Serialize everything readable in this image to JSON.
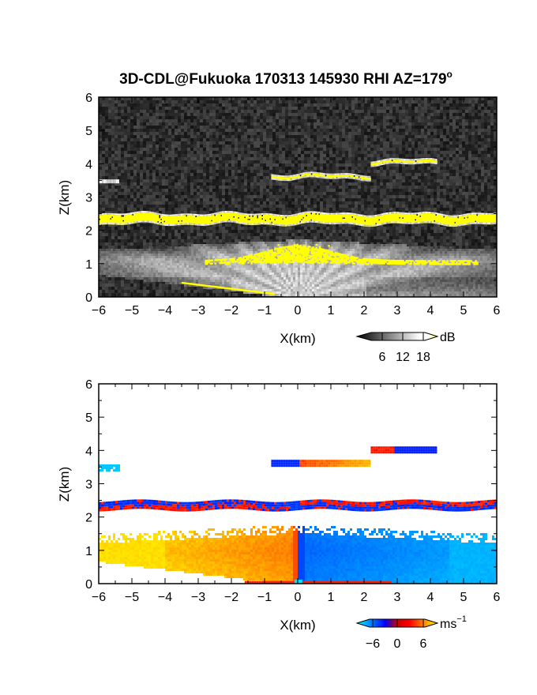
{
  "chart_data": [
    {
      "type": "heatmap",
      "title": "3D-CDL@Fukuoka 170313 145930 RHI AZ=179°",
      "title_main": "3D-CDL@Fukuoka 170313 145930 RHI AZ=179",
      "title_sup": "o",
      "quantity": "backscatter intensity",
      "xlabel": "X(km)",
      "ylabel": "Z(km)",
      "xlim": [
        -6,
        6
      ],
      "ylim": [
        0,
        6
      ],
      "xticks": [
        "−6",
        "−5",
        "−4",
        "−3",
        "−2",
        "−1",
        "0",
        "1",
        "2",
        "3",
        "4",
        "5",
        "6"
      ],
      "yticks": [
        "0",
        "1",
        "2",
        "3",
        "4",
        "5",
        "6"
      ],
      "colorbar": {
        "label": "dB",
        "ticks": [
          "6",
          "12",
          "18"
        ],
        "range": [
          0,
          20
        ],
        "colors": [
          "#000000",
          "#ffffff",
          "#ffff00"
        ]
      },
      "features": [
        {
          "layer": "boundary-layer signal fan",
          "x_range": [
            -6,
            6
          ],
          "z_range": [
            0,
            1.8
          ],
          "level_db": 12
        },
        {
          "layer": "strong echo layer",
          "x_range": [
            -6,
            6
          ],
          "z_center": 2.35,
          "z_halfwidth": 0.12,
          "level_db": 18
        },
        {
          "layer": "echo patch",
          "x_range": [
            -0.8,
            2.2
          ],
          "z_center": 3.62,
          "level_db": 18
        },
        {
          "layer": "echo patch",
          "x_range": [
            2.2,
            4.2
          ],
          "z_center": 4.05,
          "level_db": 18
        },
        {
          "layer": "echo patch",
          "x_range": [
            -6,
            -5.4
          ],
          "z_center": 3.48,
          "level_db": 11
        }
      ]
    },
    {
      "type": "heatmap",
      "quantity": "radial velocity",
      "xlabel": "X(km)",
      "ylabel": "Z(km)",
      "xlim": [
        -6,
        6
      ],
      "ylim": [
        0,
        6
      ],
      "xticks": [
        "−6",
        "−5",
        "−4",
        "−3",
        "−2",
        "−1",
        "0",
        "1",
        "2",
        "3",
        "4",
        "5",
        "6"
      ],
      "yticks": [
        "0",
        "1",
        "2",
        "3",
        "4",
        "5",
        "6"
      ],
      "colorbar": {
        "label": "ms",
        "label_sup": "−1",
        "ticks": [
          "−6",
          "0",
          "6"
        ],
        "range": [
          -8,
          8
        ],
        "colors": [
          "#00ffff",
          "#0000ff",
          "#ff0000",
          "#ffff00"
        ]
      },
      "features": [
        {
          "layer": "boundary layer",
          "x_range": [
            -6,
            0
          ],
          "z_range": [
            0.1,
            1.85
          ],
          "velocity": 4
        },
        {
          "layer": "boundary layer",
          "x_range": [
            0,
            6
          ],
          "z_range": [
            0.1,
            1.75
          ],
          "velocity": -4
        },
        {
          "layer": "echo layer",
          "x_range": [
            -6,
            6
          ],
          "z_center": 2.35,
          "velocity_mixed": [
            -6,
            6
          ]
        },
        {
          "layer": "echo patch",
          "x_range": [
            -0.8,
            2.2
          ],
          "z_center": 3.62,
          "velocity_mixed": [
            -6,
            5
          ]
        },
        {
          "layer": "echo patch",
          "x_range": [
            2.2,
            4.2
          ],
          "z_center": 4.05,
          "velocity_mixed": [
            -6,
            3
          ]
        },
        {
          "layer": "echo patch",
          "x_range": [
            -6,
            -5.4
          ],
          "z_center": 3.48,
          "velocity": -8
        }
      ]
    }
  ]
}
